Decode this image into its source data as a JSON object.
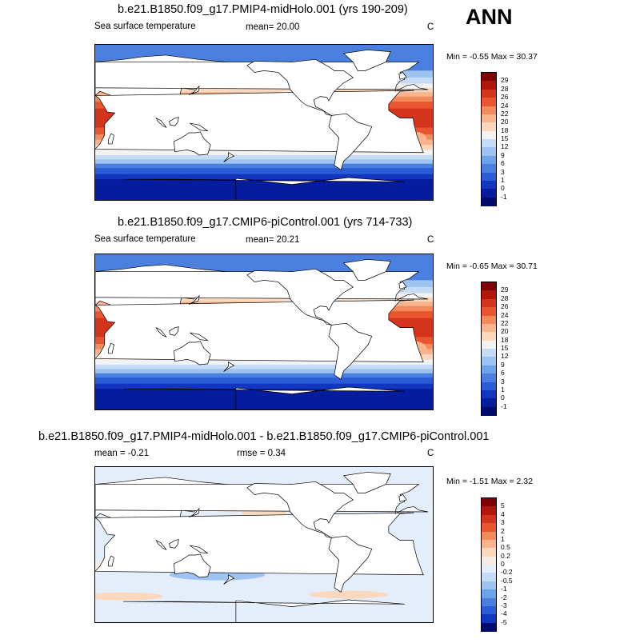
{
  "season": "ANN",
  "panels": [
    {
      "title": "b.e21.B1850.f09_g17.PMIP4-midHolo.001 (yrs 190-209)",
      "left_label": "Sea surface temperature",
      "mid_label": "mean=  20.00",
      "unit": "C",
      "minmax": "Min =  -0.55 Max =  30.37",
      "cbar_labels": [
        "29",
        "28",
        "26",
        "24",
        "22",
        "20",
        "18",
        "15",
        "12",
        "9",
        "6",
        "3",
        "1",
        "0",
        "-1"
      ],
      "cbar_colors": [
        "#7f0000",
        "#b0170a",
        "#d4341c",
        "#e8552e",
        "#f38a5c",
        "#f9b48c",
        "#fbd7bd",
        "#f2f2f2",
        "#c6dbf5",
        "#9ec3f0",
        "#6da3ea",
        "#4a7fe0",
        "#2a5cd6",
        "#1236bf",
        "#061c9e",
        "#000a6e"
      ],
      "field": "sst"
    },
    {
      "title": "b.e21.B1850.f09_g17.CMIP6-piControl.001 (yrs 714-733)",
      "left_label": "Sea surface temperature",
      "mid_label": "mean=  20.21",
      "unit": "C",
      "minmax": "Min =  -0.65 Max =  30.71",
      "cbar_labels": [
        "29",
        "28",
        "26",
        "24",
        "22",
        "20",
        "18",
        "15",
        "12",
        "9",
        "6",
        "3",
        "1",
        "0",
        "-1"
      ],
      "cbar_colors": [
        "#7f0000",
        "#b0170a",
        "#d4341c",
        "#e8552e",
        "#f38a5c",
        "#f9b48c",
        "#fbd7bd",
        "#f2f2f2",
        "#c6dbf5",
        "#9ec3f0",
        "#6da3ea",
        "#4a7fe0",
        "#2a5cd6",
        "#1236bf",
        "#061c9e",
        "#000a6e"
      ],
      "field": "sst"
    },
    {
      "title": "b.e21.B1850.f09_g17.PMIP4-midHolo.001 - b.e21.B1850.f09_g17.CMIP6-piControl.001",
      "left_label": "mean =  -0.21",
      "mid_label": "rmse =   0.34",
      "unit": "C",
      "minmax": "Min =  -1.51 Max =   2.32",
      "cbar_labels": [
        "5",
        "4",
        "3",
        "2",
        "1",
        "0.5",
        "0.2",
        "0",
        "-0.2",
        "-0.5",
        "-1",
        "-2",
        "-3",
        "-4",
        "-5"
      ],
      "cbar_colors": [
        "#7f0000",
        "#b0170a",
        "#d4341c",
        "#e8552e",
        "#f38a5c",
        "#f9b48c",
        "#fbd7bd",
        "#f7ece4",
        "#e4eefa",
        "#c6dbf5",
        "#9ec3f0",
        "#6da3ea",
        "#4a7fe0",
        "#2a5cd6",
        "#1236bf",
        "#000a6e"
      ],
      "field": "diff"
    }
  ]
}
